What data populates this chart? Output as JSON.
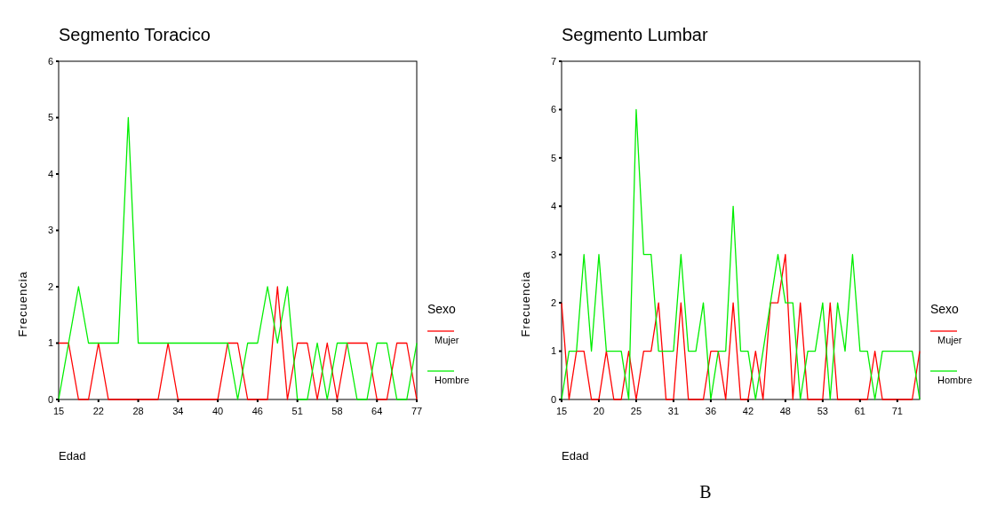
{
  "chart_data": [
    {
      "type": "line",
      "title": "Segmento Toracico",
      "xlabel": "Edad",
      "ylabel": "Frecuencia",
      "legend_title": "Sexo",
      "legend": "right",
      "grid": false,
      "line_style": "solid",
      "categories": [
        "15",
        null,
        null,
        null,
        "22",
        null,
        null,
        null,
        "28",
        null,
        null,
        null,
        "34",
        null,
        null,
        null,
        "40",
        null,
        null,
        null,
        "46",
        null,
        null,
        null,
        "51",
        null,
        null,
        null,
        "58",
        null,
        null,
        null,
        "64",
        null,
        null,
        null,
        "77"
      ],
      "ylim": [
        0,
        6
      ],
      "yticks": [
        0,
        1,
        2,
        3,
        4,
        5,
        6
      ],
      "series": [
        {
          "name": "Mujer",
          "color": "#ff0000",
          "values": [
            1,
            1,
            0,
            0,
            1,
            0,
            0,
            0,
            0,
            0,
            0,
            1,
            0,
            0,
            0,
            0,
            0,
            1,
            1,
            0,
            0,
            0,
            2,
            0,
            1,
            1,
            0,
            1,
            0,
            1,
            1,
            1,
            0,
            0,
            1,
            1,
            0
          ]
        },
        {
          "name": "Hombre",
          "color": "#00ee00",
          "values": [
            0,
            1,
            2,
            1,
            1,
            1,
            1,
            5,
            1,
            1,
            1,
            1,
            1,
            1,
            1,
            1,
            1,
            1,
            0,
            1,
            1,
            2,
            1,
            2,
            0,
            0,
            1,
            0,
            1,
            1,
            0,
            0,
            1,
            1,
            0,
            0,
            1
          ]
        }
      ]
    },
    {
      "type": "line",
      "title": "Segmento Lumbar",
      "xlabel": "Edad",
      "ylabel": "Frecuencia",
      "legend_title": "Sexo",
      "legend": "right",
      "grid": false,
      "line_style": "solid",
      "annotations": [
        "B"
      ],
      "categories": [
        "15",
        null,
        null,
        null,
        null,
        "20",
        null,
        null,
        null,
        null,
        "25",
        null,
        null,
        null,
        null,
        "31",
        null,
        null,
        null,
        null,
        "36",
        null,
        null,
        null,
        null,
        "42",
        null,
        null,
        null,
        null,
        "48",
        null,
        null,
        null,
        null,
        "53",
        null,
        null,
        null,
        null,
        "61",
        null,
        null,
        null,
        null,
        "71",
        null,
        null,
        null
      ],
      "ylim": [
        0,
        7
      ],
      "yticks": [
        0,
        1,
        2,
        3,
        4,
        5,
        6,
        7
      ],
      "series": [
        {
          "name": "Mujer",
          "color": "#ff0000",
          "values": [
            2,
            0,
            1,
            1,
            0,
            0,
            1,
            0,
            0,
            1,
            0,
            1,
            1,
            2,
            0,
            0,
            2,
            0,
            0,
            0,
            1,
            1,
            0,
            2,
            0,
            0,
            1,
            0,
            2,
            2,
            3,
            0,
            2,
            0,
            0,
            0,
            2,
            0,
            0,
            0,
            0,
            0,
            1,
            0,
            0,
            0,
            0,
            0,
            1
          ]
        },
        {
          "name": "Hombre",
          "color": "#00ee00",
          "values": [
            0,
            1,
            1,
            3,
            1,
            3,
            1,
            1,
            1,
            0,
            6,
            3,
            3,
            1,
            1,
            1,
            3,
            1,
            1,
            2,
            0,
            1,
            1,
            4,
            1,
            1,
            0,
            1,
            2,
            3,
            2,
            2,
            0,
            1,
            1,
            2,
            0,
            2,
            1,
            3,
            1,
            1,
            0,
            1,
            1,
            1,
            1,
            1,
            0
          ]
        }
      ]
    }
  ]
}
